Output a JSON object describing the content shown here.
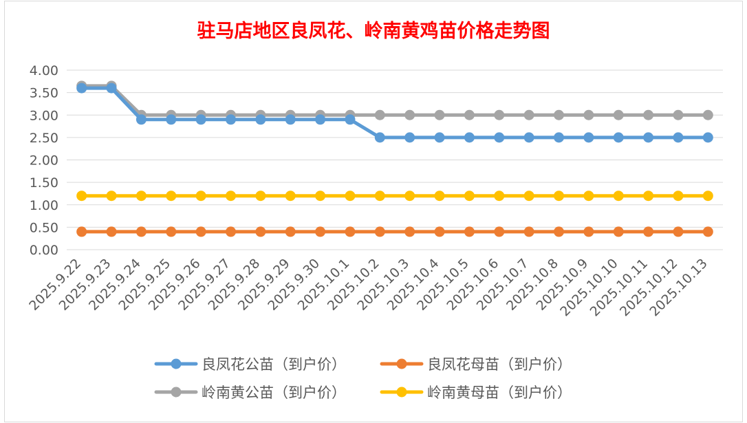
{
  "chart_data": {
    "type": "line",
    "title": "驻马店地区良凤花、岭南黄鸡苗价格走势图",
    "xlabel": "",
    "ylabel": "",
    "ylim": [
      0,
      4
    ],
    "ytick_step": 0.5,
    "y_tick_decimals": 2,
    "grid": true,
    "legend_position": "bottom",
    "categories": [
      "2025.9.22",
      "2025.9.23",
      "2025.9.24",
      "2025.9.25",
      "2025.9.26",
      "2025.9.27",
      "2025.9.28",
      "2025.9.29",
      "2025.9.30",
      "2025.10.1",
      "2025.10.2",
      "2025.10.3",
      "2025.10.4",
      "2025.10.5",
      "2025.10.6",
      "2025.10.7",
      "2025.10.8",
      "2025.10.9",
      "2025.10.10",
      "2025.10.11",
      "2025.10.12",
      "2025.10.13"
    ],
    "series": [
      {
        "name": "良凤花公苗（到户价）",
        "color": "#5b9bd5",
        "values": [
          3.6,
          3.6,
          2.9,
          2.9,
          2.9,
          2.9,
          2.9,
          2.9,
          2.9,
          2.9,
          2.5,
          2.5,
          2.5,
          2.5,
          2.5,
          2.5,
          2.5,
          2.5,
          2.5,
          2.5,
          2.5,
          2.5
        ]
      },
      {
        "name": "良凤花母苗（到户价）",
        "color": "#ed7d31",
        "values": [
          0.4,
          0.4,
          0.4,
          0.4,
          0.4,
          0.4,
          0.4,
          0.4,
          0.4,
          0.4,
          0.4,
          0.4,
          0.4,
          0.4,
          0.4,
          0.4,
          0.4,
          0.4,
          0.4,
          0.4,
          0.4,
          0.4
        ]
      },
      {
        "name": "岭南黄公苗（到户价）",
        "color": "#a5a5a5",
        "values": [
          3.65,
          3.65,
          3.0,
          3.0,
          3.0,
          3.0,
          3.0,
          3.0,
          3.0,
          3.0,
          3.0,
          3.0,
          3.0,
          3.0,
          3.0,
          3.0,
          3.0,
          3.0,
          3.0,
          3.0,
          3.0,
          3.0
        ]
      },
      {
        "name": "岭南黄母苗（到户价）",
        "color": "#ffc000",
        "values": [
          1.2,
          1.2,
          1.2,
          1.2,
          1.2,
          1.2,
          1.2,
          1.2,
          1.2,
          1.2,
          1.2,
          1.2,
          1.2,
          1.2,
          1.2,
          1.2,
          1.2,
          1.2,
          1.2,
          1.2,
          1.2,
          1.2
        ]
      }
    ]
  }
}
